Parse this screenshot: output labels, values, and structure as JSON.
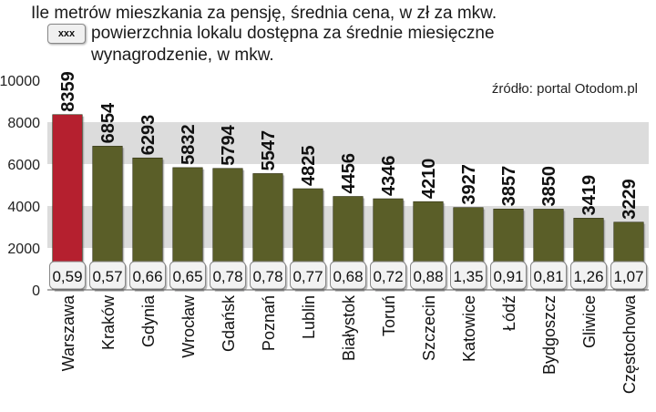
{
  "header": {
    "title": "Ile metrów mieszkania za pensję, średnia cena, w zł za mkw.",
    "legend_box_label": "xxx",
    "legend_text_line1": "powierzchnia lokalu dostępna za średnie miesięczne",
    "legend_text_line2": "wynagrodzenie, w mkw."
  },
  "source": "źródło: portal Otodom.pl",
  "colors": {
    "bar_default": "#5a5e28",
    "bar_highlight": "#b5202f",
    "grid_band": "#dcdcdc",
    "ratio_box_fill": "#f2f2f2"
  },
  "chart_data": {
    "type": "bar",
    "title": "Ile metrów mieszkania za pensję, średnia cena, w zł za mkw.",
    "categories": [
      "Warszawa",
      "Kraków",
      "Gdynia",
      "Wrocław",
      "Gdańsk",
      "Poznań",
      "Lublin",
      "Białystok",
      "Toruń",
      "Szczecin",
      "Katowice",
      "Łódź",
      "Bydgoszcz",
      "Gliwice",
      "Częstochowa"
    ],
    "values": [
      8359,
      6854,
      6293,
      5832,
      5794,
      5547,
      4825,
      4456,
      4346,
      4210,
      3927,
      3857,
      3850,
      3419,
      3229
    ],
    "value_labels": [
      "8359",
      "6854",
      "6293",
      "5832",
      "5794",
      "5547",
      "4825",
      "4456",
      "4346",
      "4210",
      "3927",
      "3857",
      "3850",
      "3419",
      "3229"
    ],
    "ratio_labels": [
      "0,59",
      "0,57",
      "0,66",
      "0,65",
      "0,78",
      "0,78",
      "0,77",
      "0,68",
      "0,72",
      "0,88",
      "1,35",
      "0,91",
      "0,81",
      "1,26",
      "1,07"
    ],
    "ratio_unit": "mkw.",
    "highlight_index": 0,
    "y_ticks": [
      "0",
      "2000",
      "4000",
      "6000",
      "8000",
      "10000"
    ],
    "ylim": [
      0,
      10000
    ],
    "grid": true,
    "xlabel": "",
    "ylabel": ""
  }
}
